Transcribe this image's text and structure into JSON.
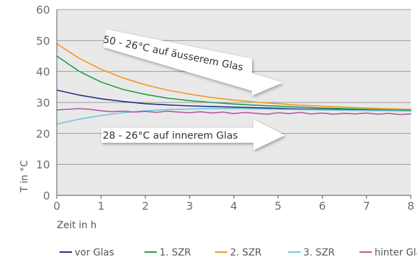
{
  "chart_data": {
    "type": "line",
    "xlabel": "Zeit in h",
    "ylabel": "T in °C",
    "xlim": [
      0,
      8
    ],
    "ylim": [
      0,
      60
    ],
    "x_ticks": [
      "0",
      "1",
      "2",
      "3",
      "4",
      "5",
      "6",
      "7",
      "8"
    ],
    "y_ticks": [
      "0",
      "10",
      "20",
      "30",
      "40",
      "50",
      "60"
    ],
    "grid": "horizontal",
    "background": "#e9e9e9",
    "legend": "bottom",
    "annotations": [
      {
        "text": "50 - 26°C auf äusserem Glas"
      },
      {
        "text": "28 - 26°C auf innerem Glas"
      }
    ],
    "series": [
      {
        "name": "vor Glas",
        "color": "#1f2a7a",
        "x": [
          0,
          0.5,
          1,
          1.5,
          2,
          2.5,
          3,
          3.5,
          4,
          4.5,
          5,
          5.5,
          6,
          6.5,
          7,
          7.5,
          8
        ],
        "values": [
          34,
          32.4,
          31.2,
          30.3,
          29.6,
          29.2,
          28.9,
          28.7,
          28.5,
          28.3,
          28.1,
          27.9,
          27.8,
          27.7,
          27.6,
          27.5,
          27.4
        ]
      },
      {
        "name": "1. SZR",
        "color": "#1e9a4a",
        "x": [
          0,
          0.5,
          1,
          1.5,
          2,
          2.5,
          3,
          3.5,
          4,
          4.5,
          5,
          5.5,
          6,
          6.5,
          7,
          7.5,
          8
        ],
        "values": [
          45,
          40.1,
          36.6,
          34.2,
          32.6,
          31.4,
          30.6,
          30.0,
          29.5,
          29.1,
          28.8,
          28.5,
          28.2,
          28.0,
          27.8,
          27.6,
          27.5
        ]
      },
      {
        "name": "2. SZR",
        "color": "#f0961e",
        "x": [
          0,
          0.5,
          1,
          1.5,
          2,
          2.5,
          3,
          3.5,
          4,
          4.5,
          5,
          5.5,
          6,
          6.5,
          7,
          7.5,
          8
        ],
        "values": [
          49,
          44.3,
          40.7,
          37.9,
          35.7,
          34.0,
          32.7,
          31.6,
          30.8,
          30.1,
          29.6,
          29.1,
          28.8,
          28.5,
          28.2,
          28.0,
          27.8
        ]
      },
      {
        "name": "3. SZR",
        "color": "#6ac2e6",
        "x": [
          0,
          0.5,
          1,
          1.5,
          2,
          2.5,
          3,
          3.5,
          4,
          4.5,
          5,
          5.5,
          6,
          6.5,
          7,
          7.5,
          8
        ],
        "values": [
          23,
          24.6,
          25.8,
          26.7,
          27.3,
          27.7,
          27.9,
          28.0,
          28.0,
          27.9,
          27.8,
          27.7,
          27.6,
          27.5,
          27.4,
          27.3,
          27.2
        ]
      },
      {
        "name": "hinter Glas",
        "color": "#b5539a",
        "x": [
          0,
          0.25,
          0.5,
          0.75,
          1,
          1.25,
          1.5,
          1.75,
          2,
          2.25,
          2.5,
          2.75,
          3,
          3.25,
          3.5,
          3.75,
          4,
          4.25,
          4.5,
          4.75,
          5,
          5.25,
          5.5,
          5.75,
          6,
          6.25,
          6.5,
          6.75,
          7,
          7.25,
          7.5,
          7.75,
          8
        ],
        "values": [
          27.6,
          27.8,
          28.0,
          27.8,
          27.3,
          27.0,
          27.2,
          26.9,
          27.1,
          26.8,
          27.2,
          26.9,
          26.7,
          27.0,
          26.6,
          26.9,
          26.4,
          26.8,
          26.5,
          26.2,
          26.7,
          26.4,
          26.8,
          26.3,
          26.6,
          26.2,
          26.5,
          26.3,
          26.6,
          26.2,
          26.5,
          26.1,
          26.3
        ]
      }
    ]
  }
}
